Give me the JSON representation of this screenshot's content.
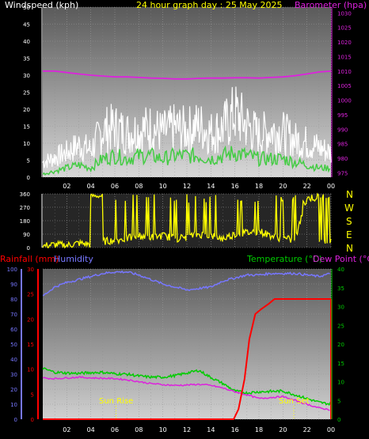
{
  "header": {
    "windspeed_label": "Windspeed (kph)",
    "title": "24 hour graph day : 25 May 2025",
    "barometer_label": "Barometer (hpa)"
  },
  "compass": {
    "letters": [
      "N",
      "W",
      "S",
      "E",
      "N"
    ]
  },
  "lower_header": {
    "rainfall_label": "Rainfall (mm)",
    "humidity_label": "Humidity",
    "temperature_label": "Temperature (°C)",
    "dewpoint_label": "Dew Point (°C)"
  },
  "annotations": {
    "sunrise": "Sun Rise",
    "sunset": "Sun Set"
  },
  "colors": {
    "wind_gust": "#ffffff",
    "wind_avg": "#44cc44",
    "barometer": "#dd22dd",
    "direction": "#ffff00",
    "rainfall": "#ff0000",
    "humidity": "#7777ff",
    "temperature": "#00cc00",
    "dewpoint": "#dd22dd",
    "annotation": "#ffff00"
  },
  "chart_data": [
    {
      "type": "line",
      "title": "24 hour graph day : 25 May 2025",
      "x_ticks": [
        "02",
        "04",
        "06",
        "08",
        "10",
        "12",
        "14",
        "16",
        "18",
        "20",
        "22",
        "00"
      ],
      "xlim": [
        0,
        24
      ],
      "y_left": {
        "label": "Windspeed (kph)",
        "ticks": [
          0,
          5,
          10,
          15,
          20,
          25,
          30,
          35,
          40,
          45,
          50
        ],
        "ylim": [
          0,
          50
        ]
      },
      "y_right": {
        "label": "Barometer (hpa)",
        "ticks": [
          975,
          980,
          985,
          990,
          995,
          1000,
          1005,
          1010,
          1015,
          1020,
          1025,
          1030
        ],
        "ylim": [
          973.5,
          1032
        ]
      },
      "grid": true,
      "series": [
        {
          "name": "Windspeed",
          "axis": "left",
          "x": [
            0,
            1,
            2,
            3,
            4,
            5,
            6,
            7,
            8,
            9,
            10,
            11,
            12,
            13,
            14,
            15,
            16,
            17,
            18,
            19,
            20,
            21,
            22,
            23,
            24
          ],
          "values": [
            3,
            4,
            5,
            7,
            6,
            12,
            14,
            13,
            14,
            15,
            13,
            14,
            14,
            15,
            13,
            14,
            16,
            14,
            12,
            13,
            12,
            10,
            9,
            8,
            7
          ]
        },
        {
          "name": "Gust",
          "axis": "left",
          "x": [
            0,
            1,
            2,
            3,
            4,
            5,
            6,
            7,
            8,
            9,
            10,
            11,
            12,
            13,
            14,
            15,
            16,
            17,
            18,
            19,
            20,
            21,
            22,
            23,
            24
          ],
          "values": [
            6,
            8,
            10,
            13,
            11,
            19,
            20,
            18,
            19,
            20,
            18,
            20,
            19,
            21,
            18,
            20,
            26,
            21,
            17,
            19,
            18,
            15,
            14,
            12,
            10
          ]
        },
        {
          "name": "Wind Avg",
          "axis": "left",
          "x": [
            0,
            1,
            2,
            3,
            4,
            5,
            6,
            7,
            8,
            9,
            10,
            11,
            12,
            13,
            14,
            15,
            16,
            17,
            18,
            19,
            20,
            21,
            22,
            23,
            24
          ],
          "values": [
            1,
            2,
            3,
            4,
            3,
            6,
            7,
            6,
            7,
            7,
            6,
            7,
            7,
            7,
            6,
            7,
            8,
            7,
            6,
            6,
            6,
            5,
            4,
            3,
            3
          ]
        },
        {
          "name": "Barometer",
          "axis": "right",
          "x": [
            0,
            1,
            2,
            3,
            4,
            5,
            6,
            7,
            8,
            9,
            10,
            11,
            12,
            13,
            14,
            15,
            16,
            17,
            18,
            19,
            20,
            21,
            22,
            23,
            24
          ],
          "values": [
            1010,
            1010,
            1009.5,
            1009,
            1008.6,
            1008.3,
            1008,
            1008,
            1007.8,
            1007.6,
            1007.5,
            1007.3,
            1007.3,
            1007.5,
            1007.6,
            1007.6,
            1007.7,
            1007.7,
            1007.6,
            1007.8,
            1008,
            1008.4,
            1009,
            1009.7,
            1010
          ]
        }
      ]
    },
    {
      "type": "line",
      "x_ticks": [
        "02",
        "04",
        "06",
        "08",
        "10",
        "12",
        "14",
        "16",
        "18",
        "20",
        "22",
        "00"
      ],
      "xlim": [
        0,
        24
      ],
      "y_left": {
        "ticks": [
          0,
          90,
          180,
          270,
          360
        ],
        "ylim": [
          0,
          360
        ]
      },
      "y_right": {
        "labels": [
          "N",
          "W",
          "S",
          "E",
          "N"
        ]
      },
      "grid": true,
      "series": [
        {
          "name": "Wind Direction",
          "x": [
            0,
            1,
            2,
            3,
            4,
            4.5,
            5,
            6,
            7,
            8,
            9,
            10,
            11,
            12,
            13,
            14,
            15,
            16,
            17,
            18,
            19,
            20,
            21,
            22,
            23,
            24
          ],
          "values": [
            10,
            20,
            15,
            30,
            20,
            330,
            40,
            50,
            60,
            80,
            70,
            80,
            60,
            70,
            90,
            80,
            60,
            90,
            100,
            110,
            80,
            60,
            50,
            330,
            340,
            350
          ]
        }
      ]
    },
    {
      "type": "line",
      "x_ticks": [
        "02",
        "04",
        "06",
        "08",
        "10",
        "12",
        "14",
        "16",
        "18",
        "20",
        "22",
        "00"
      ],
      "xlim": [
        0,
        24
      ],
      "y_rain": {
        "label": "Rainfall (mm)",
        "ticks": [
          0,
          5,
          10,
          15,
          20,
          25,
          30
        ],
        "ylim": [
          0,
          30
        ]
      },
      "y_humidity": {
        "label": "Humidity",
        "ticks": [
          0,
          10,
          20,
          30,
          40,
          50,
          60,
          70,
          80,
          90,
          100
        ],
        "ylim": [
          0,
          100
        ]
      },
      "y_temp": {
        "label": "Temperature (°C)",
        "ticks": [
          0,
          5,
          10,
          15,
          20,
          25,
          30,
          35,
          40
        ],
        "ylim": [
          0,
          40
        ]
      },
      "grid": true,
      "series": [
        {
          "name": "Rainfall",
          "axis": "rain",
          "x": [
            0,
            15.9,
            16.3,
            16.8,
            17.2,
            17.7,
            18.2,
            18.8,
            19.3,
            20,
            24
          ],
          "values": [
            0,
            0,
            2,
            8,
            16,
            21,
            22,
            23,
            24,
            24,
            24
          ]
        },
        {
          "name": "Humidity",
          "axis": "humidity",
          "x": [
            0,
            0.5,
            1,
            2,
            3,
            4,
            5,
            6,
            6.5,
            7,
            8,
            9,
            10,
            11,
            12,
            13,
            14,
            15,
            16,
            17,
            18,
            19,
            20,
            21,
            22,
            23,
            24
          ],
          "values": [
            82,
            85,
            88,
            91,
            93,
            95,
            97,
            98,
            98,
            98,
            96,
            93,
            90,
            88,
            86,
            87,
            88,
            92,
            94,
            96,
            96,
            97,
            97,
            97,
            96,
            95,
            97
          ]
        },
        {
          "name": "Temperature",
          "axis": "temp",
          "x": [
            0,
            1,
            2,
            3,
            4,
            5,
            6,
            7,
            8,
            9,
            10,
            11,
            12,
            13,
            14,
            15,
            16,
            17,
            18,
            19,
            20,
            21,
            22,
            23,
            24
          ],
          "values": [
            13.5,
            12.5,
            12.3,
            12.2,
            12.4,
            12.5,
            12.1,
            12,
            11.5,
            11.2,
            11.2,
            11.6,
            12.3,
            13,
            11.1,
            9.5,
            7.5,
            7,
            7.3,
            7.4,
            7.5,
            6.5,
            5.5,
            4.5,
            4
          ]
        },
        {
          "name": "Dew Point",
          "axis": "temp",
          "x": [
            0,
            1,
            2,
            3,
            4,
            5,
            6,
            7,
            8,
            9,
            10,
            11,
            12,
            13,
            14,
            15,
            16,
            17,
            18,
            19,
            20,
            21,
            22,
            23,
            24
          ],
          "values": [
            11,
            10.8,
            11,
            11.2,
            11,
            10.9,
            10.8,
            10.5,
            10,
            9.5,
            9.2,
            9,
            9.1,
            9.3,
            9,
            8.3,
            7.3,
            6.5,
            5.5,
            5.8,
            6,
            5,
            4,
            3,
            2.5
          ]
        }
      ],
      "annotations": [
        {
          "label": "Sun Rise",
          "x": 6.1
        },
        {
          "label": "Sun Set",
          "x": 20.9
        }
      ]
    }
  ]
}
